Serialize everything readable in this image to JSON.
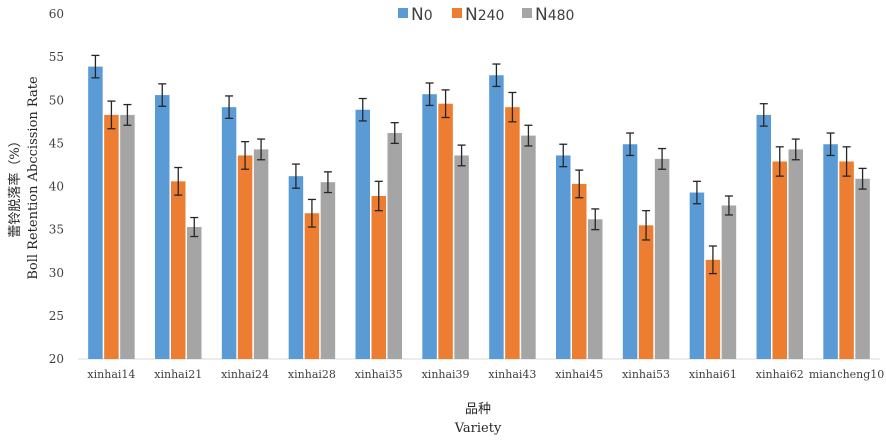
{
  "chart_data": {
    "type": "bar",
    "title": "",
    "xlabel": "品种",
    "xlabel_en": "Variety",
    "ylabel": "蕾铃脱落率（%）",
    "ylabel_en": "Boll Retention Abccission Rate",
    "ylim": [
      20,
      60
    ],
    "yticks": [
      20,
      25,
      30,
      35,
      40,
      45,
      50,
      55,
      60
    ],
    "grid": false,
    "legend_position": "top-center",
    "categories": [
      "xinhai14",
      "xinhai21",
      "xinhai24",
      "xinhai28",
      "xinhai35",
      "xinhai39",
      "xinhai43",
      "xinhai45",
      "xinhai53",
      "xinhai61",
      "xinhai62",
      "miancheng10"
    ],
    "series": [
      {
        "name": "N0",
        "legend_base": "N",
        "legend_sub": "0",
        "color": "#5B9BD5",
        "values": [
          53.9,
          50.6,
          49.2,
          41.2,
          48.9,
          50.7,
          52.9,
          43.6,
          44.9,
          39.3,
          48.3,
          44.9
        ],
        "errors": [
          1.3,
          1.3,
          1.3,
          1.4,
          1.3,
          1.3,
          1.3,
          1.3,
          1.3,
          1.3,
          1.3,
          1.3
        ]
      },
      {
        "name": "N240",
        "legend_base": "N",
        "legend_sub": "240",
        "color": "#ED7D31",
        "values": [
          48.3,
          40.6,
          43.6,
          36.9,
          38.9,
          49.6,
          49.2,
          40.3,
          35.5,
          31.5,
          42.9,
          42.9
        ],
        "errors": [
          1.6,
          1.6,
          1.6,
          1.6,
          1.7,
          1.6,
          1.7,
          1.6,
          1.7,
          1.6,
          1.7,
          1.7
        ]
      },
      {
        "name": "N480",
        "legend_base": "N",
        "legend_sub": "480",
        "color": "#A5A5A5",
        "values": [
          48.3,
          35.3,
          44.3,
          40.5,
          46.2,
          43.6,
          45.9,
          36.2,
          43.2,
          37.8,
          44.3,
          40.9
        ],
        "errors": [
          1.2,
          1.1,
          1.2,
          1.2,
          1.2,
          1.2,
          1.2,
          1.2,
          1.2,
          1.1,
          1.2,
          1.2
        ]
      }
    ]
  }
}
